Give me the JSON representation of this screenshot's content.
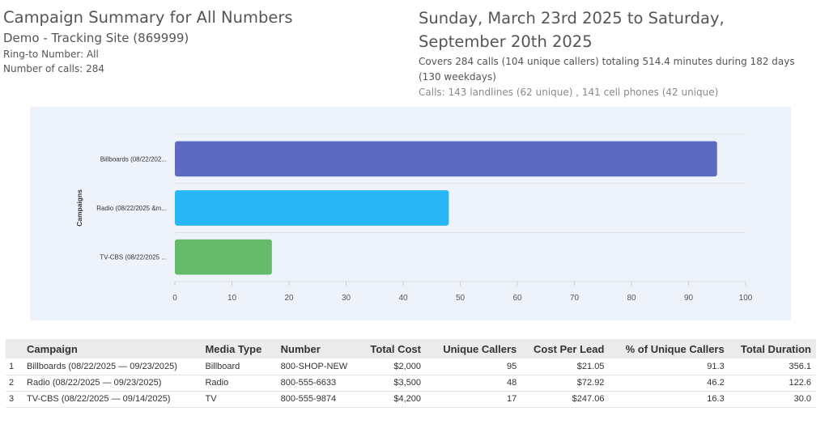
{
  "header": {
    "title": "Campaign Summary for All Numbers",
    "site": "Demo - Tracking Site (869999)",
    "ring_to": "Ring-to Number: All",
    "num_calls": "Number of calls: 284",
    "date_range": "Sunday, March 23rd 2025 to Saturday, September 20th 2025",
    "covers": "Covers 284 calls (104 unique callers) totaling 514.4 minutes during 182 days (130 weekdays)",
    "calls_breakdown": "Calls: 143 landlines (62 unique) , 141 cell phones (42 unique)"
  },
  "chart_data": {
    "type": "bar",
    "orientation": "horizontal",
    "ylabel": "Campaigns",
    "categories": [
      "Billboards (08/22/202...",
      "Radio (08/22/2025 &m...",
      "TV-CBS (08/22/2025 ..."
    ],
    "values": [
      95,
      48,
      17
    ],
    "colors": [
      "#5c6bc0",
      "#29b6f6",
      "#66bb6a"
    ],
    "xlim": [
      0,
      100
    ],
    "xticks": [
      0,
      10,
      20,
      30,
      40,
      50,
      60,
      70,
      80,
      90,
      100
    ],
    "grid": true
  },
  "table": {
    "columns": [
      "Campaign",
      "Media Type",
      "Number",
      "Total Cost",
      "Unique Callers",
      "Cost Per Lead",
      "% of Unique Callers",
      "Total Duration"
    ],
    "rows": [
      [
        "1",
        "Billboards (08/22/2025 — 09/23/2025)",
        "Billboard",
        "800-SHOP-NEW",
        "$2,000",
        "95",
        "$21.05",
        "91.3",
        "356.1"
      ],
      [
        "2",
        "Radio (08/22/2025 — 09/23/2025)",
        "Radio",
        "800-555-6633",
        "$3,500",
        "48",
        "$72.92",
        "46.2",
        "122.6"
      ],
      [
        "3",
        "TV-CBS (08/22/2025 — 09/14/2025)",
        "TV",
        "800-555-9874",
        "$4,200",
        "17",
        "$247.06",
        "16.3",
        "30.0"
      ]
    ]
  }
}
